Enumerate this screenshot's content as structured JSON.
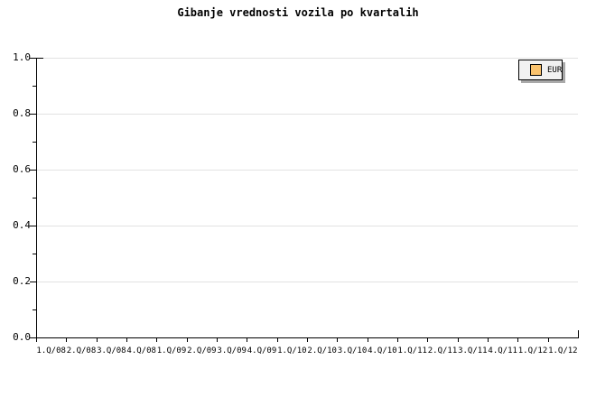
{
  "chart_data": {
    "type": "line",
    "title": "Gibanje vrednosti vozila po kvartalih",
    "categories": [
      "1.Q/08",
      "2.Q/08",
      "3.Q/08",
      "4.Q/08",
      "1.Q/09",
      "2.Q/09",
      "3.Q/09",
      "4.Q/09",
      "1.Q/10",
      "2.Q/10",
      "3.Q/10",
      "4.Q/10",
      "1.Q/11",
      "2.Q/11",
      "3.Q/11",
      "4.Q/11",
      "1.Q/12",
      "1.Q/12"
    ],
    "series": [
      {
        "name": "EUR",
        "values": [],
        "color": "#fac36e"
      }
    ],
    "xlabel": "",
    "ylabel": "",
    "ylim": [
      0.0,
      1.0
    ],
    "y_tick_labels": [
      "0.0",
      "0.2",
      "0.4",
      "0.6",
      "0.8",
      "1.0"
    ],
    "y_minor_tick_step": 0.1,
    "grid": "horizontal-only",
    "legend": {
      "label": "EUR",
      "position": "top-right"
    }
  },
  "colors": {
    "accent_swatch": "#fac36e",
    "gridline": "#e2e2e2",
    "axis": "#000000",
    "text": "#000000",
    "legend_background": "#f1f1f1",
    "legend_shadow": "#a9a9a9",
    "background": "#ffffff"
  }
}
